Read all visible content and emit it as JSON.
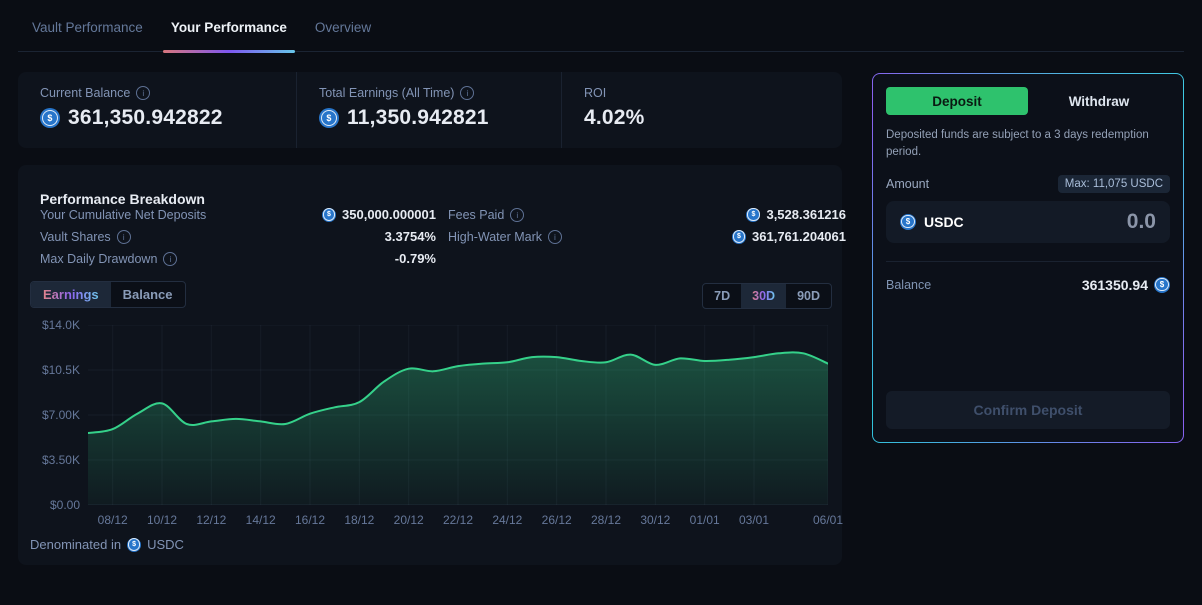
{
  "tabs": [
    {
      "label": "Vault Performance",
      "active": false
    },
    {
      "label": "Your Performance",
      "active": true
    },
    {
      "label": "Overview",
      "active": false
    }
  ],
  "stats": {
    "current_balance": {
      "label": "Current Balance",
      "value": "361,350.942822",
      "has_info": true,
      "has_usdc": true
    },
    "total_earnings": {
      "label": "Total Earnings (All Time)",
      "value": "11,350.942821",
      "has_info": true,
      "has_usdc": true
    },
    "roi": {
      "label": "ROI",
      "value": "4.02%",
      "has_info": false,
      "has_usdc": false
    }
  },
  "breakdown": {
    "title": "Performance Breakdown",
    "rows_left": [
      {
        "label": "Your Cumulative Net Deposits",
        "value": "350,000.000001",
        "usdc": true,
        "info": false
      },
      {
        "label": "Vault Shares",
        "value": "3.3754%",
        "usdc": false,
        "info": true
      },
      {
        "label": "Max Daily Drawdown",
        "value": "-0.79%",
        "usdc": false,
        "info": true
      }
    ],
    "rows_right": [
      {
        "label": "Fees Paid",
        "value": "3,528.361216",
        "usdc": true,
        "info": true
      },
      {
        "label": "High-Water Mark",
        "value": "361,761.204061",
        "usdc": true,
        "info": true
      }
    ],
    "series_toggle": [
      "Earnings",
      "Balance"
    ],
    "series_active": "Earnings",
    "range_options": [
      "7D",
      "30D",
      "90D"
    ],
    "range_active": "30D",
    "footnote_prefix": "Denominated in",
    "footnote_asset": "USDC"
  },
  "chart_data": {
    "type": "area",
    "title": "Earnings (30D)",
    "x": [
      "07/12",
      "08/12",
      "09/12",
      "10/12",
      "11/12",
      "12/12",
      "13/12",
      "14/12",
      "15/12",
      "16/12",
      "17/12",
      "18/12",
      "19/12",
      "20/12",
      "21/12",
      "22/12",
      "23/12",
      "24/12",
      "25/12",
      "26/12",
      "27/12",
      "28/12",
      "29/12",
      "30/12",
      "31/12",
      "01/01",
      "02/01",
      "03/01",
      "04/01",
      "05/01",
      "06/01"
    ],
    "values": [
      5600,
      5900,
      7100,
      7900,
      6300,
      6500,
      6700,
      6500,
      6300,
      7100,
      7600,
      8000,
      9600,
      10600,
      10400,
      10800,
      11000,
      11100,
      11500,
      11500,
      11200,
      11100,
      11700,
      10900,
      11400,
      11200,
      11300,
      11500,
      11800,
      11800,
      11000
    ],
    "ylim": [
      0,
      14000
    ],
    "y_ticks": [
      {
        "v": 14000,
        "label": "$14.0K"
      },
      {
        "v": 10500,
        "label": "$10.5K"
      },
      {
        "v": 7000,
        "label": "$7.00K"
      },
      {
        "v": 3500,
        "label": "$3.50K"
      },
      {
        "v": 0,
        "label": "$0.00"
      }
    ],
    "x_ticks": [
      {
        "i": 1,
        "label": "08/12"
      },
      {
        "i": 3,
        "label": "10/12"
      },
      {
        "i": 5,
        "label": "12/12"
      },
      {
        "i": 7,
        "label": "14/12"
      },
      {
        "i": 9,
        "label": "16/12"
      },
      {
        "i": 11,
        "label": "18/12"
      },
      {
        "i": 13,
        "label": "20/12"
      },
      {
        "i": 15,
        "label": "22/12"
      },
      {
        "i": 17,
        "label": "24/12"
      },
      {
        "i": 19,
        "label": "26/12"
      },
      {
        "i": 21,
        "label": "28/12"
      },
      {
        "i": 23,
        "label": "30/12"
      },
      {
        "i": 25,
        "label": "01/01"
      },
      {
        "i": 27,
        "label": "03/01"
      },
      {
        "i": 30,
        "label": "06/01"
      }
    ],
    "grid": true,
    "legend": null,
    "line_color": "#35d18a",
    "fill_color": "#35d18a"
  },
  "deposit_panel": {
    "tabs": [
      {
        "label": "Deposit",
        "active": true
      },
      {
        "label": "Withdraw",
        "active": false
      }
    ],
    "notice": "Deposited funds are subject to a 3 days redemption period.",
    "amount_label": "Amount",
    "max_badge": "Max: 11,075 USDC",
    "asset": "USDC",
    "amount_value": "0.0",
    "balance_label": "Balance",
    "balance_value": "361350.94",
    "confirm_label": "Confirm Deposit"
  },
  "colors": {
    "accent_green": "#2ec26d",
    "usdc_blue": "#2775ca",
    "chart_line": "#35d18a",
    "tab_underline_gradient": [
      "#d8767d",
      "#7e57f0",
      "#67c6ea"
    ],
    "panel_border_gradient": [
      "#8a5ff0",
      "#3ecbe3"
    ]
  }
}
